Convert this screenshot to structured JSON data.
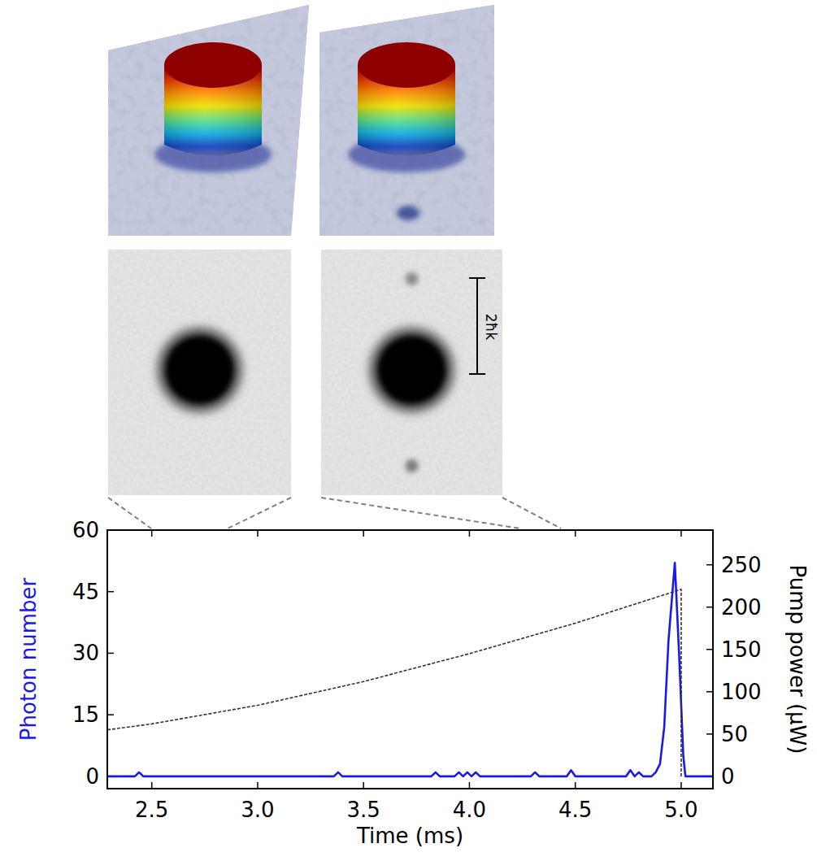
{
  "chart_data": {
    "type": "line",
    "x_label": "Time (ms)",
    "y_label": "Photon number",
    "y2_label": "Pump power (μW)",
    "annotations": [
      {
        "text": "2ħk"
      }
    ],
    "xlim": [
      2.29,
      5.15
    ],
    "xticks": [
      2.5,
      {
        "value": 3,
        "label": "3.0"
      },
      3.5,
      {
        "value": 4,
        "label": "4.0"
      },
      4.5,
      {
        "value": 5,
        "label": "5.0"
      }
    ],
    "ylim": [
      -3,
      60
    ],
    "yticks": [
      0,
      15,
      30,
      45,
      60
    ],
    "y2lim": [
      -14.5,
      291
    ],
    "y2ticks": [
      0,
      50,
      100,
      150,
      200,
      250
    ],
    "grid": false,
    "series": [
      {
        "color": "#1a1ae6",
        "line_style": "solid",
        "x": [
          2.29,
          2.42,
          2.44,
          2.46,
          3.36,
          3.38,
          3.4,
          3.82,
          3.84,
          3.86,
          3.93,
          3.95,
          3.97,
          3.99,
          4.01,
          4.03,
          4.05,
          4.29,
          4.31,
          4.33,
          4.46,
          4.48,
          4.5,
          4.74,
          4.76,
          4.78,
          4.8,
          4.82,
          4.86,
          4.88,
          4.9,
          4.92,
          4.94,
          4.97,
          4.99,
          5.01,
          5.02,
          5.15
        ],
        "values": [
          0,
          0,
          1,
          0,
          0,
          1,
          0,
          0,
          1,
          0,
          0,
          1,
          0,
          1,
          0,
          1,
          0,
          0,
          1,
          0,
          0,
          1.5,
          0,
          0,
          1.5,
          0,
          1,
          0,
          0,
          1,
          3,
          12,
          33,
          52,
          30,
          5,
          0,
          0
        ]
      },
      {
        "color": "#333333",
        "line_style": "dashed",
        "axis": "y2",
        "x": [
          2.29,
          2.5,
          3.0,
          3.5,
          4.0,
          4.5,
          5.0,
          5.0
        ],
        "values": [
          55,
          62,
          84,
          112,
          145,
          181,
          221,
          0
        ]
      }
    ]
  }
}
